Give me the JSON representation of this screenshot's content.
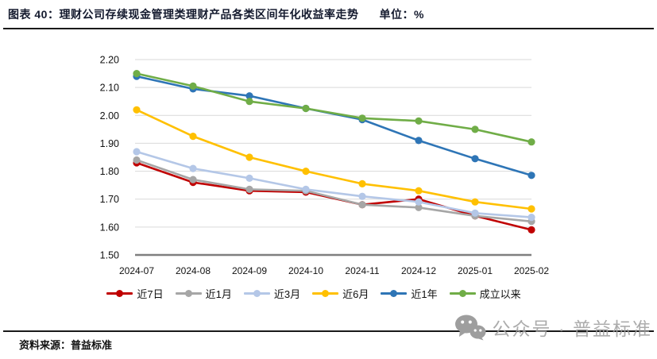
{
  "header": {
    "title": "图表 40：理财公司存续现金管理类理财产品各类区间年化收益率走势",
    "unit_label": "单位：%"
  },
  "chart_data": {
    "type": "line",
    "title": "理财公司存续现金管理类理财产品各类区间年化收益率走势",
    "unit": "%",
    "categories": [
      "2024-07",
      "2024-08",
      "2024-09",
      "2024-10",
      "2024-11",
      "2024-12",
      "2025-01",
      "2025-02"
    ],
    "series": [
      {
        "name": "近7日",
        "color": "#C00000",
        "values": [
          1.83,
          1.76,
          1.73,
          1.725,
          1.68,
          1.7,
          1.64,
          1.59
        ]
      },
      {
        "name": "近1月",
        "color": "#A6A6A6",
        "values": [
          1.84,
          1.77,
          1.735,
          1.73,
          1.68,
          1.67,
          1.64,
          1.62
        ]
      },
      {
        "name": "近3月",
        "color": "#B4C7E7",
        "values": [
          1.87,
          1.81,
          1.775,
          1.735,
          1.71,
          1.69,
          1.65,
          1.635
        ]
      },
      {
        "name": "近6月",
        "color": "#FFC000",
        "values": [
          2.02,
          1.925,
          1.85,
          1.8,
          1.755,
          1.73,
          1.69,
          1.665
        ]
      },
      {
        "name": "近1年",
        "color": "#2E75B6",
        "values": [
          2.14,
          2.095,
          2.07,
          2.025,
          1.985,
          1.91,
          1.845,
          1.785
        ]
      },
      {
        "name": "成立以来",
        "color": "#70AD47",
        "values": [
          2.15,
          2.105,
          2.05,
          2.025,
          1.99,
          1.98,
          1.95,
          1.905
        ]
      }
    ],
    "ylim": [
      1.5,
      2.2
    ],
    "ytick_step": 0.1,
    "yticks": [
      "2.20",
      "2.10",
      "2.00",
      "1.90",
      "1.80",
      "1.70",
      "1.60",
      "1.50"
    ],
    "grid": true,
    "gridline_color": "#D9D9D9",
    "axis_line_color": "#7F7F7F",
    "legend_position": "bottom"
  },
  "footer": {
    "source": "资料来源：普益标准",
    "watermark_text": "公众号 · 普益标准",
    "watermark_icon": "wechat-official-account-icon",
    "watermark_color": "#9e9e9e"
  }
}
